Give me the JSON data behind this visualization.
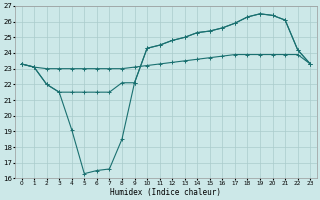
{
  "title": "",
  "xlabel": "Humidex (Indice chaleur)",
  "background_color": "#cce8e8",
  "grid_color": "#aacccc",
  "line_color": "#1a7070",
  "xlim": [
    -0.5,
    23.5
  ],
  "ylim": [
    16,
    27
  ],
  "xticks": [
    0,
    1,
    2,
    3,
    4,
    5,
    6,
    7,
    8,
    9,
    10,
    11,
    12,
    13,
    14,
    15,
    16,
    17,
    18,
    19,
    20,
    21,
    22,
    23
  ],
  "yticks": [
    16,
    17,
    18,
    19,
    20,
    21,
    22,
    23,
    24,
    25,
    26,
    27
  ],
  "line1_x": [
    0,
    1,
    2,
    3,
    4,
    5,
    6,
    7,
    8,
    9,
    10,
    11,
    12,
    13,
    14,
    15,
    16,
    17,
    18,
    19,
    20,
    21,
    22,
    23
  ],
  "line1_y": [
    23.3,
    23.1,
    23.0,
    23.0,
    23.0,
    23.0,
    23.0,
    23.0,
    23.0,
    23.1,
    23.2,
    23.3,
    23.4,
    23.5,
    23.6,
    23.7,
    23.8,
    23.9,
    23.9,
    23.9,
    23.9,
    23.9,
    23.9,
    23.3
  ],
  "line2_x": [
    0,
    1,
    2,
    3,
    4,
    5,
    6,
    7,
    8,
    9,
    10,
    11,
    12,
    13,
    14,
    15,
    16,
    17,
    18,
    19,
    20,
    21,
    22,
    23
  ],
  "line2_y": [
    23.3,
    23.1,
    22.0,
    21.5,
    21.5,
    21.5,
    21.5,
    21.5,
    22.1,
    22.1,
    24.3,
    24.5,
    24.8,
    25.0,
    25.3,
    25.4,
    25.6,
    25.9,
    26.3,
    26.5,
    26.4,
    26.1,
    24.2,
    23.3
  ],
  "line3_x": [
    0,
    1,
    2,
    3,
    4,
    5,
    6,
    7,
    8,
    9,
    10,
    11,
    12,
    13,
    14,
    15,
    16,
    17,
    18,
    19,
    20,
    21,
    22,
    23
  ],
  "line3_y": [
    23.3,
    23.1,
    22.0,
    21.5,
    19.1,
    16.3,
    16.5,
    16.6,
    18.5,
    22.1,
    24.3,
    24.5,
    24.8,
    25.0,
    25.3,
    25.4,
    25.6,
    25.9,
    26.3,
    26.5,
    26.4,
    26.1,
    24.2,
    23.3
  ]
}
